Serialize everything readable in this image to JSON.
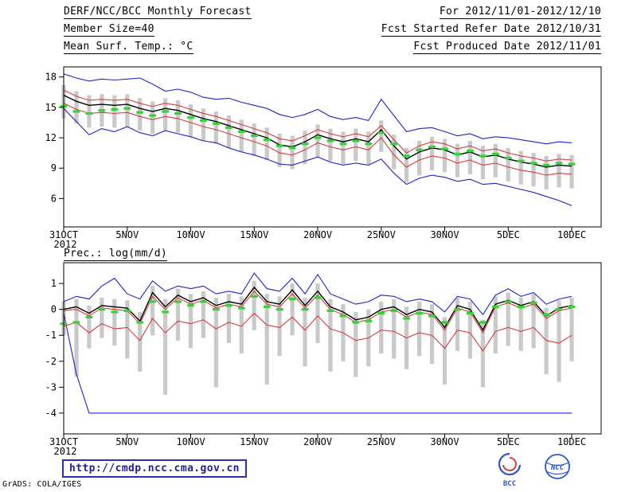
{
  "header": {
    "left": [
      "DERF/NCC/BCC Monthly Forecast",
      "Member Size=40"
    ],
    "right": [
      "For 2012/11/01-2012/12/10",
      "Fcst Started Refer Date 2012/10/31",
      "Fcst Produced Date 2012/11/01"
    ]
  },
  "footer": {
    "url": "http://cmdp.ncc.cma.gov.cn",
    "credit": "GrADS: COLA/IGES",
    "bcc_label": "BCC",
    "ncc_label": "NCC"
  },
  "colors": {
    "blue": "#2121c8",
    "red": "#d43c3c",
    "green": "#35d435",
    "gray_bar": "#c9c9c9",
    "frame": "#000000"
  },
  "chart_data": [
    {
      "type": "line",
      "title": "Mean Surf. Temp.: °C",
      "xlabel": "",
      "ylabel": "",
      "x_year_label": "2012",
      "n_points": 41,
      "x_tick_labels": [
        "31OCT",
        "5NOV",
        "10NOV",
        "15NOV",
        "20NOV",
        "25NOV",
        "30NOV",
        "5DEC",
        "10DEC"
      ],
      "x_tick_indices": [
        0,
        5,
        10,
        15,
        20,
        25,
        30,
        35,
        40
      ],
      "ylim": [
        3.2,
        19.0
      ],
      "yticks": [
        6,
        9,
        12,
        15,
        18
      ],
      "grid": false,
      "legend": "none",
      "series": [
        {
          "name": "spread-bars",
          "style": "bar",
          "color": "#c9c9c9",
          "high": [
            17.2,
            16.6,
            16.2,
            16.3,
            16.2,
            16.3,
            15.9,
            15.6,
            15.9,
            15.7,
            15.3,
            14.9,
            14.6,
            14.2,
            13.8,
            13.4,
            13.0,
            12.4,
            12.2,
            12.7,
            13.3,
            12.9,
            12.6,
            12.9,
            12.6,
            13.7,
            12.3,
            11.0,
            11.7,
            12.1,
            11.9,
            11.4,
            11.7,
            11.2,
            11.4,
            11.0,
            10.7,
            10.5,
            10.2,
            10.4,
            10.3
          ],
          "low": [
            13.9,
            13.4,
            13.0,
            13.1,
            13.0,
            13.1,
            12.7,
            12.4,
            12.7,
            12.5,
            12.1,
            11.7,
            11.4,
            11.0,
            10.6,
            10.2,
            9.8,
            9.1,
            8.9,
            9.4,
            10.1,
            9.7,
            9.4,
            9.7,
            9.4,
            10.6,
            8.9,
            7.6,
            8.3,
            8.8,
            8.6,
            8.1,
            8.4,
            7.9,
            8.1,
            7.7,
            7.4,
            7.2,
            6.9,
            7.1,
            7.0
          ]
        },
        {
          "name": "ensemble-max",
          "style": "line",
          "color": "#2121c8",
          "width": 1.1,
          "values": [
            18.3,
            17.9,
            17.6,
            17.8,
            17.7,
            17.8,
            17.9,
            17.3,
            16.6,
            16.8,
            16.5,
            16.0,
            15.8,
            15.9,
            15.5,
            15.2,
            14.9,
            14.3,
            14.0,
            14.3,
            14.8,
            14.1,
            13.8,
            14.0,
            13.7,
            15.8,
            14.2,
            12.6,
            12.9,
            13.0,
            12.6,
            12.2,
            12.4,
            11.9,
            12.1,
            12.0,
            11.8,
            11.6,
            11.4,
            11.6,
            11.5
          ]
        },
        {
          "name": "ensemble-min",
          "style": "line",
          "color": "#2121c8",
          "width": 1.1,
          "values": [
            14.9,
            13.6,
            12.3,
            12.9,
            12.6,
            13.1,
            12.5,
            12.2,
            12.7,
            12.4,
            12.1,
            11.7,
            11.5,
            11.0,
            10.6,
            10.3,
            9.9,
            9.4,
            9.3,
            9.7,
            10.1,
            9.6,
            9.3,
            9.5,
            9.3,
            9.9,
            8.5,
            7.4,
            8.0,
            8.3,
            8.1,
            7.7,
            7.9,
            7.4,
            7.5,
            7.2,
            6.9,
            6.6,
            6.2,
            5.8,
            5.3
          ]
        },
        {
          "name": "upper-bound-red",
          "style": "line",
          "color": "#d43c3c",
          "width": 1.1,
          "values": [
            16.7,
            16.1,
            15.7,
            15.8,
            15.7,
            15.8,
            15.4,
            15.1,
            15.4,
            15.2,
            14.8,
            14.4,
            14.1,
            13.7,
            13.3,
            12.9,
            12.5,
            11.9,
            11.7,
            12.2,
            12.8,
            12.4,
            12.1,
            12.4,
            12.1,
            13.2,
            11.8,
            10.5,
            11.2,
            11.6,
            11.4,
            10.9,
            11.2,
            10.7,
            10.9,
            10.5,
            10.2,
            10.0,
            9.7,
            9.9,
            9.8
          ]
        },
        {
          "name": "lower-bound-red",
          "style": "line",
          "color": "#d43c3c",
          "width": 1.1,
          "values": [
            15.4,
            14.8,
            14.4,
            14.5,
            14.4,
            14.5,
            14.1,
            13.8,
            14.1,
            13.9,
            13.5,
            13.1,
            12.8,
            12.4,
            12.0,
            11.6,
            11.2,
            10.5,
            10.3,
            10.8,
            11.5,
            11.1,
            10.8,
            11.1,
            10.8,
            12.0,
            10.3,
            9.1,
            9.8,
            10.2,
            10.0,
            9.5,
            9.8,
            9.3,
            9.5,
            9.1,
            8.8,
            8.6,
            8.3,
            8.5,
            8.4
          ]
        },
        {
          "name": "ensemble-mean",
          "style": "line",
          "color": "#000000",
          "width": 1.4,
          "values": [
            16.2,
            15.6,
            15.2,
            15.3,
            15.2,
            15.3,
            14.9,
            14.6,
            14.9,
            14.7,
            14.3,
            13.9,
            13.6,
            13.2,
            12.8,
            12.4,
            12.0,
            11.3,
            11.1,
            11.6,
            12.3,
            11.9,
            11.6,
            11.9,
            11.6,
            12.8,
            11.2,
            9.9,
            10.6,
            11.0,
            10.8,
            10.3,
            10.6,
            10.1,
            10.3,
            9.9,
            9.6,
            9.4,
            9.1,
            9.3,
            9.2
          ]
        },
        {
          "name": "green-dash-marks",
          "style": "dash",
          "color": "#35d435",
          "values": [
            15.1,
            14.6,
            14.4,
            14.7,
            14.8,
            14.9,
            14.5,
            14.2,
            14.6,
            14.4,
            14.0,
            13.7,
            13.4,
            13.0,
            12.6,
            12.2,
            11.8,
            11.2,
            11.0,
            11.4,
            12.0,
            11.7,
            11.4,
            11.7,
            11.4,
            12.5,
            11.4,
            10.2,
            10.8,
            11.1,
            10.9,
            10.4,
            10.7,
            10.2,
            10.4,
            10.0,
            9.7,
            9.5,
            9.3,
            9.5,
            9.4
          ]
        }
      ]
    },
    {
      "type": "line",
      "title": "Prec.: log(mm/d)",
      "xlabel": "",
      "ylabel": "",
      "x_year_label": "2012",
      "n_points": 41,
      "x_tick_labels": [
        "31OCT",
        "5NOV",
        "10NOV",
        "15NOV",
        "20NOV",
        "25NOV",
        "30NOV",
        "5DEC",
        "10DEC"
      ],
      "x_tick_indices": [
        0,
        5,
        10,
        15,
        20,
        25,
        30,
        35,
        40
      ],
      "ylim": [
        -4.8,
        1.8
      ],
      "yticks": [
        -4,
        -3,
        -2,
        -1,
        0,
        1
      ],
      "grid": false,
      "legend": "none",
      "series": [
        {
          "name": "spread-bars",
          "style": "bar",
          "color": "#c9c9c9",
          "high": [
            0.3,
            0.4,
            0.15,
            0.45,
            0.4,
            0.35,
            -0.1,
            0.9,
            0.4,
            0.8,
            0.6,
            0.7,
            0.45,
            0.6,
            0.5,
            1.1,
            0.6,
            0.5,
            1.0,
            0.45,
            1.0,
            0.4,
            0.2,
            -0.1,
            0.0,
            0.3,
            0.4,
            0.1,
            0.3,
            0.2,
            -0.3,
            0.45,
            0.3,
            -0.4,
            0.5,
            0.65,
            0.45,
            0.6,
            0.05,
            0.35,
            0.45
          ],
          "low": [
            -1.0,
            -2.6,
            -1.5,
            -1.1,
            -1.4,
            -1.9,
            -2.4,
            -1.0,
            -3.3,
            -1.2,
            -1.5,
            -1.1,
            -3.0,
            -1.3,
            -1.7,
            -0.8,
            -2.9,
            -1.8,
            -1.0,
            -2.2,
            -1.3,
            -2.4,
            -2.0,
            -2.6,
            -2.2,
            -1.7,
            -1.9,
            -2.3,
            -1.8,
            -2.1,
            -2.9,
            -1.6,
            -1.9,
            -3.0,
            -1.7,
            -1.4,
            -1.6,
            -1.5,
            -2.5,
            -2.8,
            -2.0
          ]
        },
        {
          "name": "ensemble-max",
          "style": "line",
          "color": "#2121c8",
          "width": 1.1,
          "values": [
            0.3,
            0.5,
            0.4,
            0.9,
            1.2,
            0.6,
            0.4,
            1.1,
            0.7,
            0.9,
            0.8,
            0.9,
            0.6,
            0.7,
            0.6,
            1.4,
            0.8,
            0.7,
            1.2,
            0.6,
            1.35,
            0.6,
            0.4,
            0.2,
            0.3,
            0.55,
            0.5,
            0.3,
            0.4,
            0.3,
            -0.1,
            0.5,
            0.4,
            -0.2,
            0.55,
            0.8,
            0.5,
            0.65,
            0.2,
            0.4,
            0.5
          ]
        },
        {
          "name": "ensemble-min",
          "style": "line",
          "color": "#2121c8",
          "width": 1.1,
          "values": [
            -0.15,
            -2.5,
            -4.0,
            -4.0,
            -4.0,
            -4.0,
            -4.0,
            -4.0,
            -4.0,
            -4.0,
            -4.0,
            -4.0,
            -4.0,
            -4.0,
            -4.0,
            -4.0,
            -4.0,
            -4.0,
            -4.0,
            -4.0,
            -4.0,
            -4.0,
            -4.0,
            -4.0,
            -4.0,
            -4.0,
            -4.0,
            -4.0,
            -4.0,
            -4.0,
            -4.0,
            -4.0,
            -4.0,
            -4.0,
            -4.0,
            -4.0,
            -4.0,
            -4.0,
            -4.0,
            -4.0,
            -4.0
          ]
        },
        {
          "name": "upper-bound-red",
          "style": "line",
          "color": "#d43c3c",
          "width": 1.1,
          "values": [
            -0.05,
            0.0,
            -0.25,
            0.05,
            0.0,
            -0.05,
            -0.55,
            0.5,
            0.0,
            0.45,
            0.2,
            0.35,
            0.05,
            0.2,
            0.1,
            0.7,
            0.2,
            0.1,
            0.6,
            0.05,
            0.55,
            0.0,
            -0.2,
            -0.5,
            -0.4,
            -0.1,
            0.0,
            -0.3,
            -0.1,
            -0.2,
            -0.8,
            0.05,
            -0.1,
            -0.9,
            0.1,
            0.25,
            0.05,
            0.2,
            -0.35,
            -0.05,
            0.05
          ]
        },
        {
          "name": "lower-bound-red",
          "style": "line",
          "color": "#d43c3c",
          "width": 1.1,
          "values": [
            -0.65,
            -0.5,
            -0.9,
            -0.55,
            -0.75,
            -0.7,
            -1.2,
            -0.35,
            -0.9,
            -0.45,
            -0.55,
            -0.4,
            -0.75,
            -0.5,
            -0.65,
            -0.15,
            -0.6,
            -0.7,
            -0.3,
            -0.8,
            -0.25,
            -0.75,
            -0.9,
            -1.2,
            -1.1,
            -0.8,
            -0.85,
            -1.1,
            -0.9,
            -1.0,
            -1.5,
            -0.8,
            -0.9,
            -1.6,
            -0.85,
            -0.7,
            -0.85,
            -0.7,
            -1.2,
            -1.3,
            -1.0
          ]
        },
        {
          "name": "ensemble-mean",
          "style": "line",
          "color": "#000000",
          "width": 1.4,
          "values": [
            0.0,
            0.1,
            -0.15,
            0.15,
            0.1,
            0.05,
            -0.45,
            0.65,
            0.1,
            0.55,
            0.3,
            0.45,
            0.15,
            0.3,
            0.2,
            0.85,
            0.3,
            0.2,
            0.75,
            0.15,
            0.7,
            0.1,
            -0.1,
            -0.4,
            -0.3,
            0.0,
            0.1,
            -0.2,
            0.0,
            -0.1,
            -0.7,
            0.15,
            0.0,
            -0.8,
            0.2,
            0.35,
            0.15,
            0.3,
            -0.25,
            0.05,
            0.15
          ]
        },
        {
          "name": "green-dash-marks",
          "style": "dash",
          "color": "#35d435",
          "values": [
            -0.55,
            -0.5,
            -0.3,
            0.0,
            -0.1,
            -0.05,
            -0.5,
            0.3,
            -0.1,
            0.3,
            0.15,
            0.3,
            0.0,
            0.15,
            0.05,
            0.5,
            0.1,
            0.0,
            0.4,
            0.0,
            0.45,
            -0.05,
            -0.25,
            -0.5,
            -0.45,
            -0.15,
            -0.05,
            -0.35,
            -0.15,
            -0.25,
            -0.5,
            0.0,
            -0.15,
            -0.5,
            0.1,
            0.3,
            0.1,
            0.25,
            -0.2,
            0.0,
            0.1
          ]
        }
      ]
    }
  ]
}
